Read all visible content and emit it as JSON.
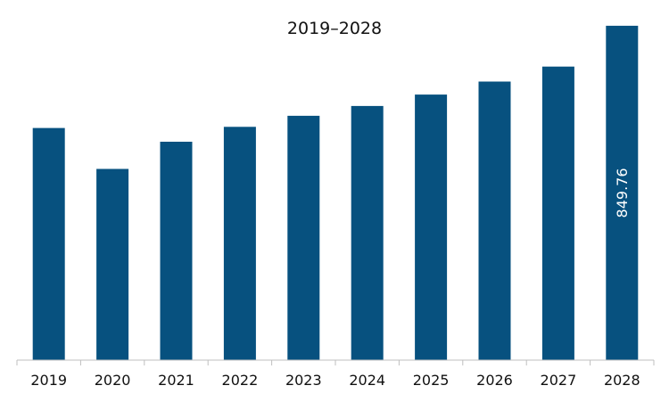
{
  "chart_data": {
    "type": "bar",
    "title": "2019–2028",
    "categories": [
      "2019",
      "2020",
      "2021",
      "2022",
      "2023",
      "2024",
      "2025",
      "2026",
      "2027",
      "2028"
    ],
    "values": [
      590,
      486,
      555,
      593,
      621,
      646,
      675,
      708,
      746,
      849.76
    ],
    "data_labels": [
      "",
      "",
      "",
      "",
      "",
      "",
      "",
      "",
      "",
      "849.76"
    ],
    "ylim": [
      0,
      870
    ],
    "xlabel": "",
    "ylabel": "",
    "grid": false,
    "legend": "none",
    "bar_color": "#07517f",
    "axis_color": "#bfbfbf"
  }
}
